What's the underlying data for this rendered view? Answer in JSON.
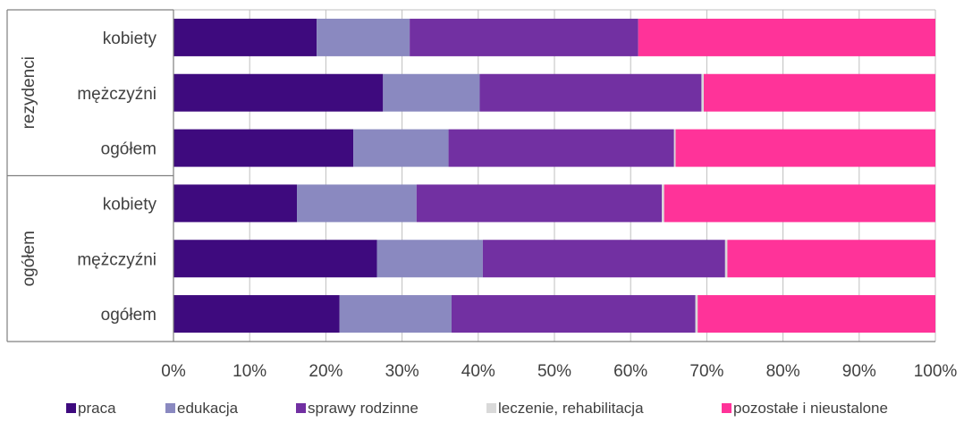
{
  "chart_data": {
    "type": "bar",
    "orientation": "horizontal",
    "stacked": "percent",
    "groups": [
      {
        "name": "rezydenci",
        "categories": [
          "kobiety",
          "mężczyźni",
          "ogółem"
        ]
      },
      {
        "name": "ogółem",
        "categories": [
          "kobiety",
          "mężczyźni",
          "ogółem"
        ]
      }
    ],
    "rows": [
      {
        "group": "rezydenci",
        "category": "kobiety",
        "values": [
          18.8,
          12.2,
          30.0,
          0.0,
          39.0
        ]
      },
      {
        "group": "rezydenci",
        "category": "mężczyźni",
        "values": [
          27.5,
          12.7,
          29.1,
          0.3,
          30.4
        ]
      },
      {
        "group": "rezydenci",
        "category": "ogółem",
        "values": [
          23.6,
          12.5,
          29.6,
          0.2,
          34.1
        ]
      },
      {
        "group": "ogółem",
        "category": "kobiety",
        "values": [
          16.2,
          15.7,
          32.2,
          0.3,
          35.6
        ]
      },
      {
        "group": "ogółem",
        "category": "mężczyźni",
        "values": [
          26.7,
          13.9,
          31.8,
          0.3,
          27.3
        ]
      },
      {
        "group": "ogółem",
        "category": "ogółem",
        "values": [
          21.8,
          14.7,
          32.0,
          0.3,
          31.2
        ]
      }
    ],
    "series": [
      {
        "name": "praca",
        "color": "#3E0A7E"
      },
      {
        "name": "edukacja",
        "color": "#8A89C0"
      },
      {
        "name": "sprawy rodzinne",
        "color": "#7230A2"
      },
      {
        "name": "leczenie, rehabilitacja",
        "color": "#D9D9D9"
      },
      {
        "name": "pozostałe i nieustalone",
        "color": "#FF3399"
      }
    ],
    "xlim": [
      0,
      100
    ],
    "x_ticks": [
      "0%",
      "10%",
      "20%",
      "30%",
      "40%",
      "50%",
      "60%",
      "70%",
      "80%",
      "90%",
      "100%"
    ],
    "grid": "vertical",
    "legend_position": "bottom"
  }
}
